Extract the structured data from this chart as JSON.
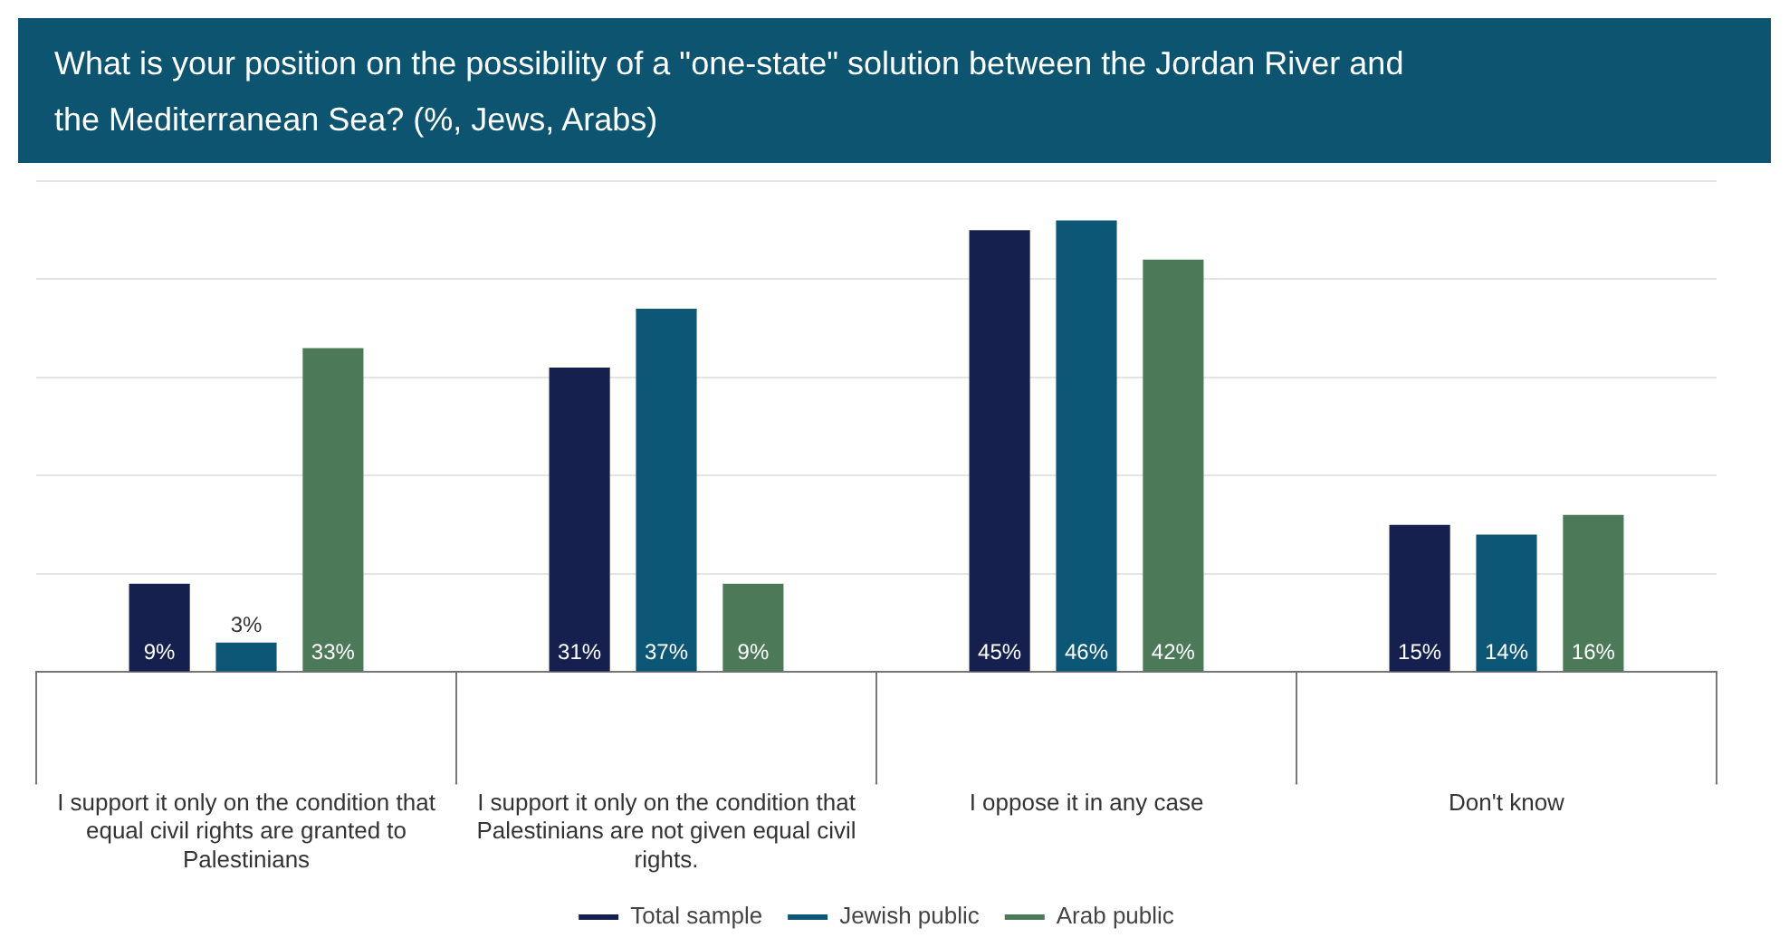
{
  "chart_data": {
    "type": "bar",
    "title": "What is your position on the possibility of a \"one-state\" solution between the Jordan River and the Mediterranean Sea? (%, Jews, Arabs)",
    "categories": [
      "I support it only on the condition that equal civil rights are granted to Palestinians",
      "I support it only on the condition that Palestinians are not given equal civil rights.",
      "I oppose it in any case",
      "Don't know"
    ],
    "series": [
      {
        "name": "Total sample",
        "color": "#15204f",
        "values": [
          9,
          31,
          45,
          15
        ],
        "value_labels": [
          "9%",
          "31%",
          "45%",
          "15%"
        ]
      },
      {
        "name": "Jewish public",
        "color": "#0b5775",
        "values": [
          3,
          37,
          46,
          14
        ],
        "value_labels": [
          "3%",
          "37%",
          "46%",
          "14%"
        ]
      },
      {
        "name": "Arab public",
        "color": "#4c7a58",
        "values": [
          33,
          9,
          42,
          16
        ],
        "value_labels": [
          "33%",
          "9%",
          "42%",
          "16%"
        ]
      }
    ],
    "ylim": [
      0,
      50
    ],
    "yticks": [
      0,
      10,
      20,
      30,
      40,
      50
    ],
    "tick_labels": "x",
    "grid": "y",
    "legend": "bottom"
  }
}
